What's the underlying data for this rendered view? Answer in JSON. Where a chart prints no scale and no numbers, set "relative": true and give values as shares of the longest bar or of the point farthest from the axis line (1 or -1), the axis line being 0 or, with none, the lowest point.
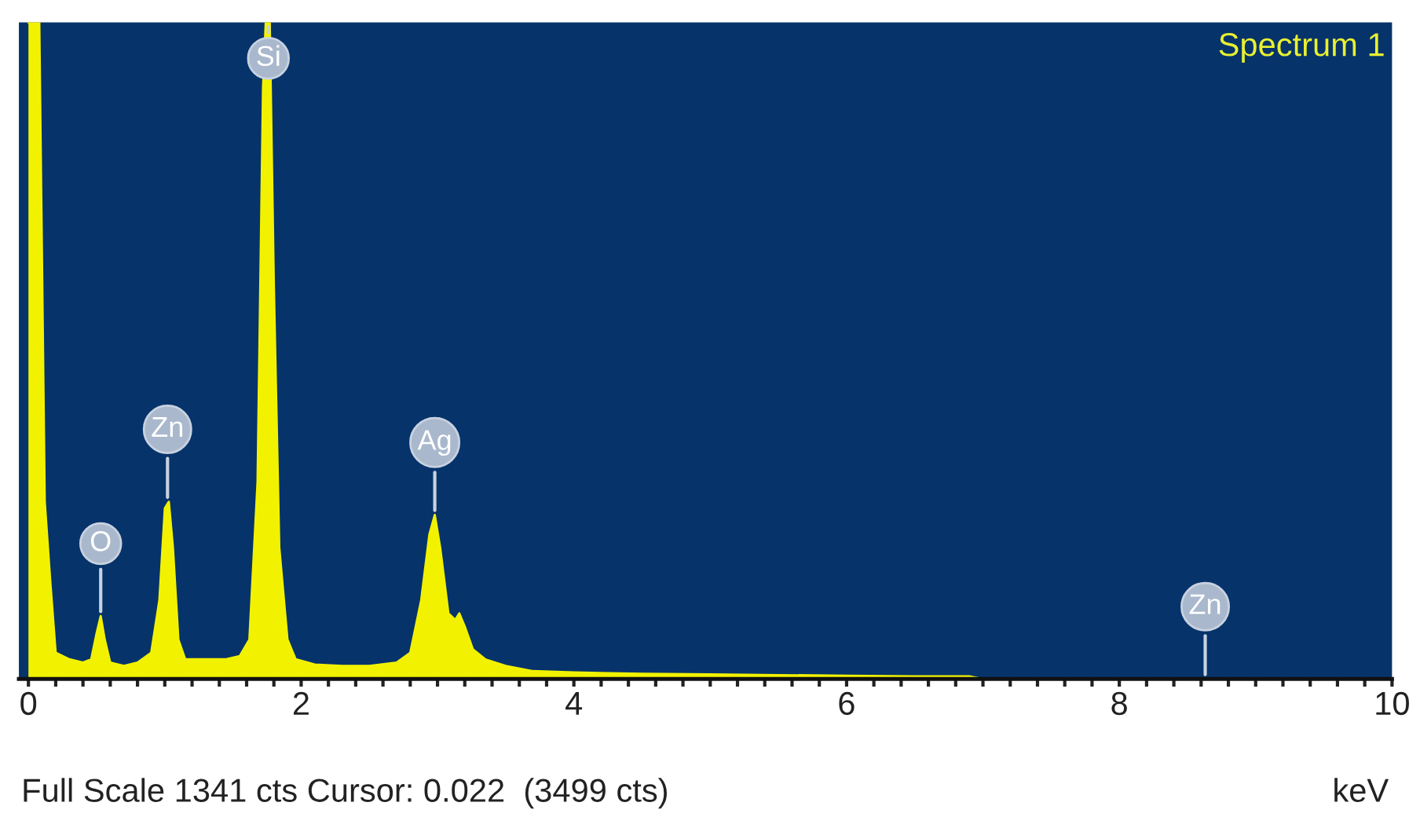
{
  "chart_data": {
    "type": "area",
    "title": "Spectrum 1",
    "xlabel": "keV",
    "relative": true,
    "xlim": [
      -0.07,
      10.0
    ],
    "xticks": [
      0,
      {
        "value": 0.2,
        "label": null
      },
      {
        "value": 0.4,
        "label": null
      },
      {
        "value": 0.6,
        "label": null
      },
      {
        "value": 0.8,
        "label": null
      },
      {
        "value": 1.0,
        "label": null
      },
      {
        "value": 1.2,
        "label": null
      },
      {
        "value": 1.4,
        "label": null
      },
      {
        "value": 1.6,
        "label": null
      },
      {
        "value": 1.8,
        "label": null
      },
      2,
      {
        "value": 2.2,
        "label": null
      },
      {
        "value": 2.4,
        "label": null
      },
      {
        "value": 2.6,
        "label": null
      },
      {
        "value": 2.8,
        "label": null
      },
      {
        "value": 3.0,
        "label": null
      },
      {
        "value": 3.2,
        "label": null
      },
      {
        "value": 3.4,
        "label": null
      },
      {
        "value": 3.6,
        "label": null
      },
      {
        "value": 3.8,
        "label": null
      },
      4,
      {
        "value": 4.2,
        "label": null
      },
      {
        "value": 4.4,
        "label": null
      },
      {
        "value": 4.6,
        "label": null
      },
      {
        "value": 4.8,
        "label": null
      },
      {
        "value": 5.0,
        "label": null
      },
      {
        "value": 5.2,
        "label": null
      },
      {
        "value": 5.4,
        "label": null
      },
      {
        "value": 5.6,
        "label": null
      },
      {
        "value": 5.8,
        "label": null
      },
      6,
      {
        "value": 6.2,
        "label": null
      },
      {
        "value": 6.4,
        "label": null
      },
      {
        "value": 6.6,
        "label": null
      },
      {
        "value": 6.8,
        "label": null
      },
      {
        "value": 7.0,
        "label": null
      },
      {
        "value": 7.2,
        "label": null
      },
      {
        "value": 7.4,
        "label": null
      },
      {
        "value": 7.6,
        "label": null
      },
      {
        "value": 7.8,
        "label": null
      },
      8,
      {
        "value": 8.2,
        "label": null
      },
      {
        "value": 8.4,
        "label": null
      },
      {
        "value": 8.6,
        "label": null
      },
      {
        "value": 8.8,
        "label": null
      },
      {
        "value": 9.0,
        "label": null
      },
      {
        "value": 9.2,
        "label": null
      },
      {
        "value": 9.4,
        "label": null
      },
      {
        "value": 9.6,
        "label": null
      },
      {
        "value": 9.8,
        "label": null
      },
      10
    ],
    "series": [
      {
        "color": "#f2f200",
        "x": [
          0.0,
          0.08,
          0.12,
          0.16,
          0.2,
          0.3,
          0.4,
          0.46,
          0.5,
          0.53,
          0.56,
          0.6,
          0.7,
          0.8,
          0.9,
          0.96,
          1.0,
          1.03,
          1.06,
          1.1,
          1.15,
          1.3,
          1.45,
          1.55,
          1.62,
          1.68,
          1.72,
          1.74,
          1.77,
          1.8,
          1.84,
          1.9,
          1.96,
          2.1,
          2.3,
          2.5,
          2.7,
          2.8,
          2.88,
          2.94,
          2.98,
          3.02,
          3.08,
          3.13,
          3.16,
          3.2,
          3.26,
          3.35,
          3.5,
          3.7,
          4.0,
          4.5,
          5.0,
          5.5,
          6.0,
          6.5,
          6.9,
          7.0,
          8.0,
          10.0
        ],
        "values": [
          1,
          1,
          0.27,
          0.15,
          0.04,
          0.03,
          0.025,
          0.03,
          0.07,
          0.096,
          0.06,
          0.025,
          0.02,
          0.025,
          0.04,
          0.12,
          0.26,
          0.27,
          0.2,
          0.06,
          0.03,
          0.03,
          0.03,
          0.035,
          0.06,
          0.3,
          0.9,
          1,
          1,
          0.6,
          0.2,
          0.06,
          0.03,
          0.022,
          0.02,
          0.02,
          0.025,
          0.04,
          0.12,
          0.22,
          0.25,
          0.2,
          0.1,
          0.09,
          0.1,
          0.08,
          0.045,
          0.03,
          0.02,
          0.012,
          0.01,
          0.008,
          0.007,
          0.006,
          0.005,
          0.004,
          0.004,
          0,
          0,
          0
        ]
      }
    ],
    "annotations": [
      {
        "text": "O",
        "x": 0.53,
        "y": 0.096
      },
      {
        "text": "Zn",
        "x": 1.02,
        "y": 0.27
      },
      {
        "text": "Si",
        "x": 1.76,
        "y": 1
      },
      {
        "text": "Ag",
        "x": 2.98,
        "y": 0.25
      },
      {
        "text": "Zn",
        "x": 8.63,
        "y": 0
      },
      "Full Scale 1341 cts Cursor: 0.022  (3499 cts)"
    ]
  }
}
